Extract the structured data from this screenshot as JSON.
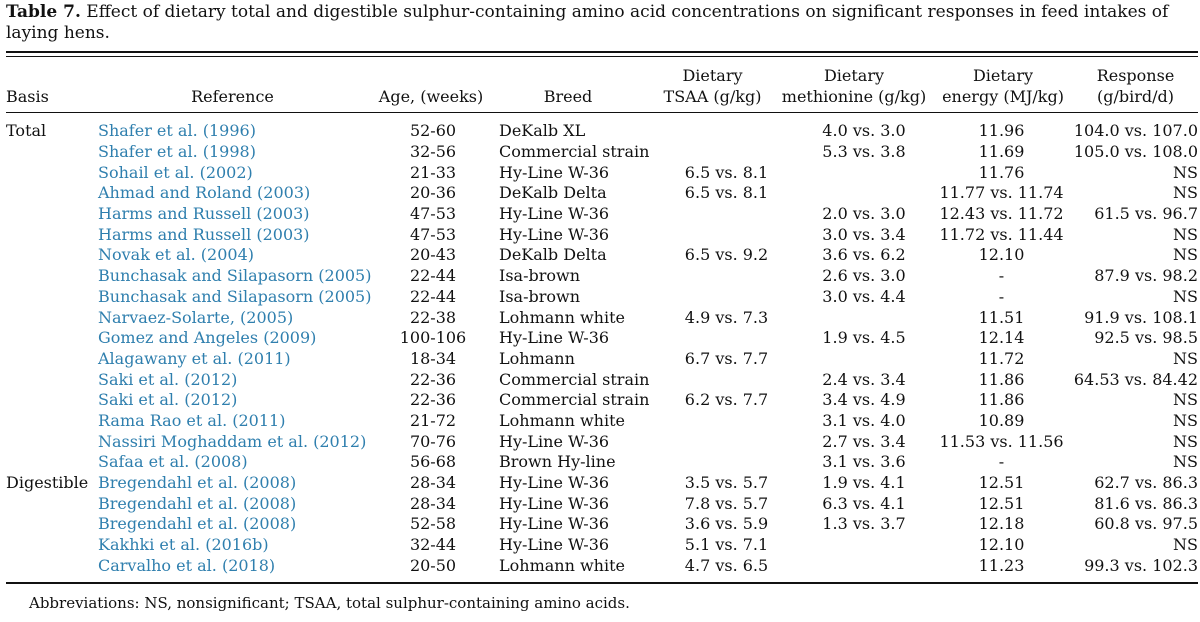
{
  "caption": {
    "label": "Table 7.",
    "text": "Effect of dietary total and digestible sulphur-containing amino acid concentrations on significant responses in feed intakes of laying hens."
  },
  "headers": {
    "basis": "Basis",
    "reference": "Reference",
    "age": "Age, (weeks)",
    "breed": "Breed",
    "tsaa_l1": "Dietary",
    "tsaa_l2": "TSAA (g/kg)",
    "met_l1": "Dietary",
    "met_l2": "methionine (g/kg)",
    "energy_l1": "Dietary",
    "energy_l2": "energy (MJ/kg)",
    "response_l1": "Response",
    "response_l2": "(g/bird/d)"
  },
  "rows": [
    {
      "basis": "Total",
      "reference": "Shafer et al. (1996)",
      "age": "52-60",
      "breed": "DeKalb XL",
      "tsaa": "",
      "met": "4.0 vs. 3.0",
      "energy": "11.96",
      "response": "104.0 vs. 107.0"
    },
    {
      "basis": "",
      "reference": "Shafer et al. (1998)",
      "age": "32-56",
      "breed": "Commercial strain",
      "tsaa": "",
      "met": "5.3 vs. 3.8",
      "energy": "11.69",
      "response": "105.0 vs. 108.0"
    },
    {
      "basis": "",
      "reference": "Sohail et al. (2002)",
      "age": "21-33",
      "breed": "Hy-Line W-36",
      "tsaa": "6.5 vs. 8.1",
      "met": "",
      "energy": "11.76",
      "response": "NS"
    },
    {
      "basis": "",
      "reference": "Ahmad and Roland (2003)",
      "age": "20-36",
      "breed": "DeKalb Delta",
      "tsaa": "6.5 vs. 8.1",
      "met": "",
      "energy": "11.77 vs. 11.74",
      "response": "NS"
    },
    {
      "basis": "",
      "reference": "Harms and Russell (2003)",
      "age": "47-53",
      "breed": "Hy-Line W-36",
      "tsaa": "",
      "met": "2.0 vs. 3.0",
      "energy": "12.43 vs. 11.72",
      "response": "61.5 vs. 96.7"
    },
    {
      "basis": "",
      "reference": "Harms and Russell (2003)",
      "age": "47-53",
      "breed": "Hy-Line W-36",
      "tsaa": "",
      "met": "3.0 vs. 3.4",
      "energy": "11.72 vs. 11.44",
      "response": "NS"
    },
    {
      "basis": "",
      "reference": "Novak et al. (2004)",
      "age": "20-43",
      "breed": "DeKalb Delta",
      "tsaa": "6.5 vs. 9.2",
      "met": "3.6 vs. 6.2",
      "energy": "12.10",
      "response": "NS"
    },
    {
      "basis": "",
      "reference": "Bunchasak and Silapasorn (2005)",
      "age": "22-44",
      "breed": "Isa-brown",
      "tsaa": "",
      "met": "2.6 vs. 3.0",
      "energy": "-",
      "response": "87.9 vs. 98.2"
    },
    {
      "basis": "",
      "reference": "Bunchasak and Silapasorn (2005)",
      "age": "22-44",
      "breed": "Isa-brown",
      "tsaa": "",
      "met": "3.0 vs. 4.4",
      "energy": "-",
      "response": "NS"
    },
    {
      "basis": "",
      "reference": "Narvaez-Solarte, (2005)",
      "age": "22-38",
      "breed": "Lohmann white",
      "tsaa": "4.9 vs. 7.3",
      "met": "",
      "energy": "11.51",
      "response": "91.9 vs. 108.1"
    },
    {
      "basis": "",
      "reference": "Gomez and Angeles (2009)",
      "age": "100-106",
      "breed": "Hy-Line W-36",
      "tsaa": "",
      "met": "1.9 vs. 4.5",
      "energy": "12.14",
      "response": "92.5 vs. 98.5"
    },
    {
      "basis": "",
      "reference": "Alagawany et al. (2011)",
      "age": "18-34",
      "breed": "Lohmann",
      "tsaa": "6.7 vs. 7.7",
      "met": "",
      "energy": "11.72",
      "response": "NS"
    },
    {
      "basis": "",
      "reference": "Saki et al. (2012)",
      "age": "22-36",
      "breed": "Commercial strain",
      "tsaa": "",
      "met": "2.4 vs. 3.4",
      "energy": "11.86",
      "response": "64.53 vs. 84.42"
    },
    {
      "basis": "",
      "reference": "Saki et al. (2012)",
      "age": "22-36",
      "breed": "Commercial strain",
      "tsaa": "6.2 vs. 7.7",
      "met": "3.4 vs. 4.9",
      "energy": "11.86",
      "response": "NS"
    },
    {
      "basis": "",
      "reference": "Rama Rao et al. (2011)",
      "age": "21-72",
      "breed": "Lohmann white",
      "tsaa": "",
      "met": "3.1 vs. 4.0",
      "energy": "10.89",
      "response": "NS"
    },
    {
      "basis": "",
      "reference": "Nassiri Moghaddam et al. (2012)",
      "age": "70-76",
      "breed": "Hy-Line W-36",
      "tsaa": "",
      "met": "2.7 vs. 3.4",
      "energy": "11.53 vs. 11.56",
      "response": "NS"
    },
    {
      "basis": "",
      "reference": "Safaa et al. (2008)",
      "age": "56-68",
      "breed": "Brown Hy-line",
      "tsaa": "",
      "met": "3.1 vs. 3.6",
      "energy": "-",
      "response": "NS"
    },
    {
      "basis": "Digestible",
      "reference": "Bregendahl et al. (2008)",
      "age": "28-34",
      "breed": "Hy-Line W-36",
      "tsaa": "3.5 vs. 5.7",
      "met": "1.9 vs. 4.1",
      "energy": "12.51",
      "response": "62.7 vs. 86.3"
    },
    {
      "basis": "",
      "reference": "Bregendahl et al. (2008)",
      "age": "28-34",
      "breed": "Hy-Line W-36",
      "tsaa": "7.8 vs. 5.7",
      "met": "6.3 vs. 4.1",
      "energy": "12.51",
      "response": "81.6 vs. 86.3"
    },
    {
      "basis": "",
      "reference": "Bregendahl et al. (2008)",
      "age": "52-58",
      "breed": "Hy-Line W-36",
      "tsaa": "3.6 vs. 5.9",
      "met": "1.3 vs. 3.7",
      "energy": "12.18",
      "response": "60.8 vs. 97.5"
    },
    {
      "basis": "",
      "reference": "Kakhki et al. (2016b)",
      "age": "32-44",
      "breed": "Hy-Line W-36",
      "tsaa": "5.1 vs. 7.1",
      "met": "",
      "energy": "12.10",
      "response": "NS"
    },
    {
      "basis": "",
      "reference": "Carvalho et al. (2018)",
      "age": "20-50",
      "breed": "Lohmann white",
      "tsaa": "4.7 vs. 6.5",
      "met": "",
      "energy": "11.23",
      "response": "99.3 vs. 102.3"
    }
  ],
  "footnote": "Abbreviations: NS, nonsignificant; TSAA, total sulphur-containing amino acids."
}
